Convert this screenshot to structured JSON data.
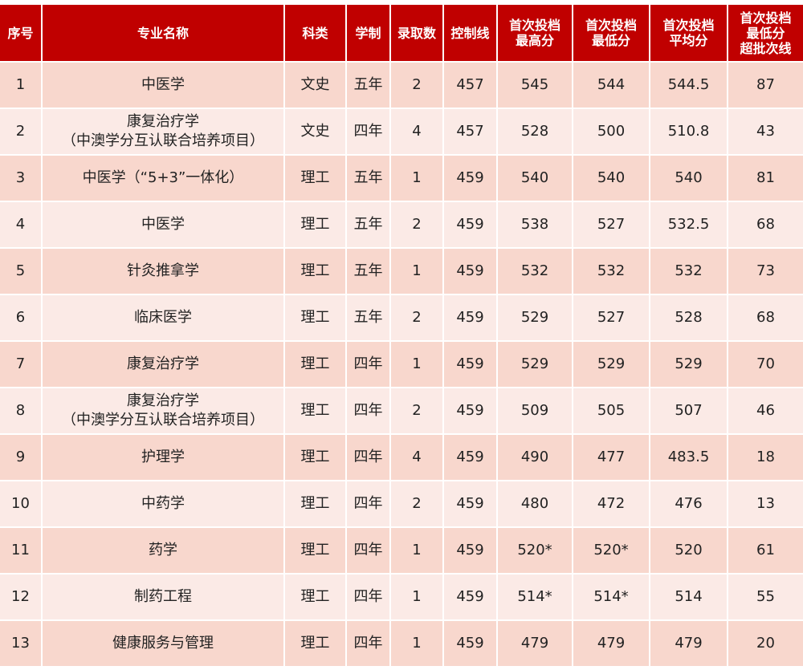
{
  "headers": [
    "序号",
    "专业名称",
    "科类",
    "学制",
    "录取数",
    "控制线",
    "首次投档\n最高分",
    "首次投档\n最低分",
    "首次投档\n平均分",
    "首次投档\n最低分\n超批次线"
  ],
  "rows": [
    [
      "1",
      "中医学",
      "文史",
      "五年",
      "2",
      "457",
      "545",
      "544",
      "544.5",
      "87"
    ],
    [
      "2",
      "康复治疗学\n（中澳学分互认联合培养项目）",
      "文史",
      "四年",
      "4",
      "457",
      "528",
      "500",
      "510.8",
      "43"
    ],
    [
      "3",
      "中医学（“5+3”一体化）",
      "理工",
      "五年",
      "1",
      "459",
      "540",
      "540",
      "540",
      "81"
    ],
    [
      "4",
      "中医学",
      "理工",
      "五年",
      "2",
      "459",
      "538",
      "527",
      "532.5",
      "68"
    ],
    [
      "5",
      "针灸推拿学",
      "理工",
      "五年",
      "1",
      "459",
      "532",
      "532",
      "532",
      "73"
    ],
    [
      "6",
      "临床医学",
      "理工",
      "五年",
      "2",
      "459",
      "529",
      "527",
      "528",
      "68"
    ],
    [
      "7",
      "康复治疗学",
      "理工",
      "四年",
      "1",
      "459",
      "529",
      "529",
      "529",
      "70"
    ],
    [
      "8",
      "康复治疗学\n（中澳学分互认联合培养项目）",
      "理工",
      "四年",
      "2",
      "459",
      "509",
      "505",
      "507",
      "46"
    ],
    [
      "9",
      "护理学",
      "理工",
      "四年",
      "4",
      "459",
      "490",
      "477",
      "483.5",
      "18"
    ],
    [
      "10",
      "中药学",
      "理工",
      "四年",
      "2",
      "459",
      "480",
      "472",
      "476",
      "13"
    ],
    [
      "11",
      "药学",
      "理工",
      "四年",
      "1",
      "459",
      "520*",
      "520*",
      "520",
      "61"
    ],
    [
      "12",
      "制药工程",
      "理工",
      "四年",
      "1",
      "459",
      "514*",
      "514*",
      "514",
      "55"
    ],
    [
      "13",
      "健康服务与管理",
      "理工",
      "四年",
      "1",
      "459",
      "479",
      "479",
      "479",
      "20"
    ]
  ],
  "colors": {
    "header": "#c00000",
    "row_odd": "#f8d7cd",
    "row_even": "#fbeae6"
  }
}
